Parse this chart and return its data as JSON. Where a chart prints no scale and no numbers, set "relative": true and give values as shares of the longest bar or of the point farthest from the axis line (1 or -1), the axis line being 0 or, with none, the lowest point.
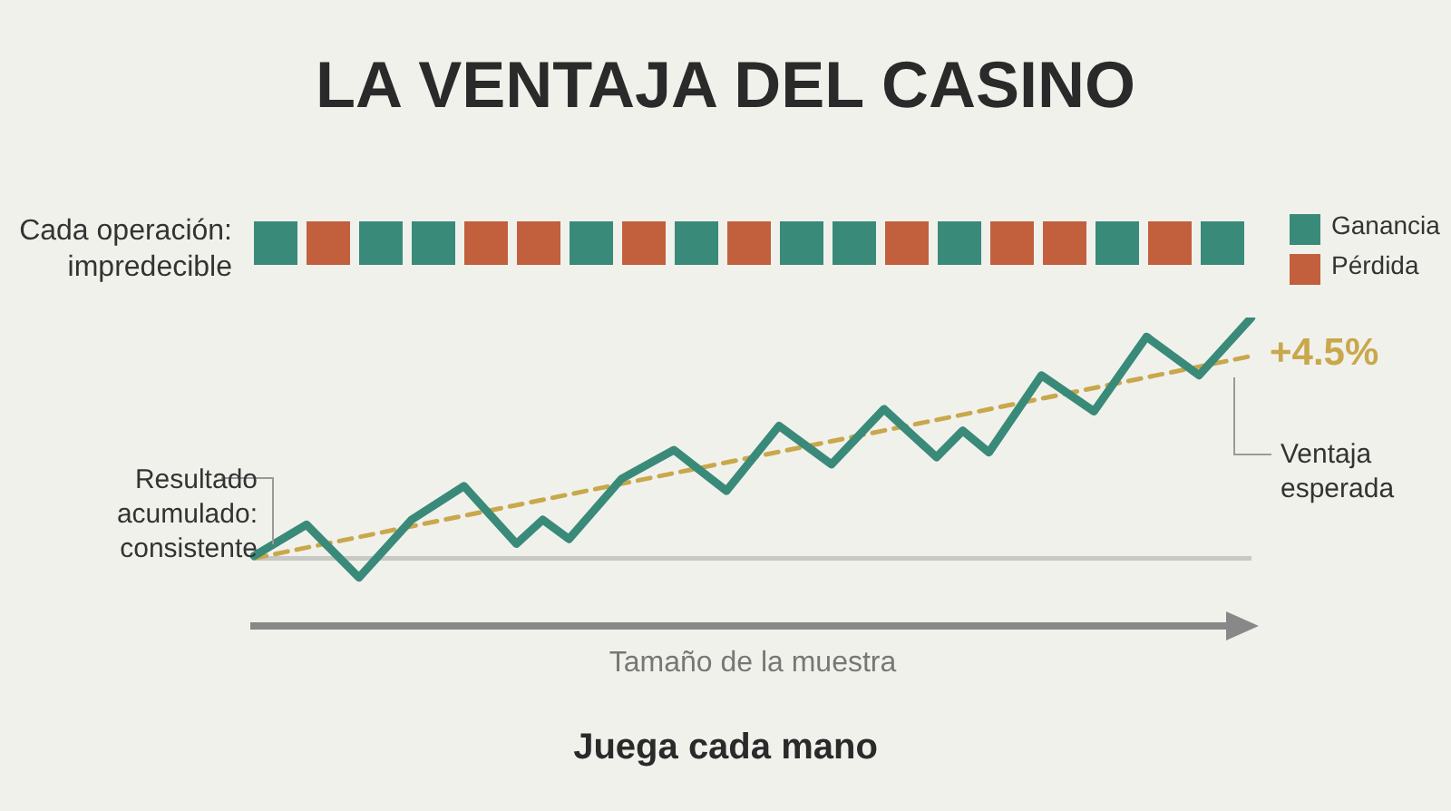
{
  "chart_data": {
    "type": "line",
    "title": "LA VENTAJA DEL CASINO",
    "xlabel": "Tamaño de la muestra",
    "relative": true,
    "categories": [
      null,
      null,
      null,
      null,
      null,
      null,
      null,
      null,
      null,
      null,
      null,
      null,
      null,
      null,
      null,
      null,
      null,
      null,
      null,
      null,
      null,
      null,
      null,
      null,
      null,
      null,
      null,
      null,
      null,
      null,
      null,
      null,
      null,
      null,
      null,
      null,
      null,
      null,
      null
    ],
    "series": [
      {
        "color": "#3a8a7a",
        "values": [
          0.01,
          null,
          0.14,
          null,
          -0.08,
          null,
          0.16,
          null,
          0.3,
          null,
          0.06,
          0.16,
          0.08,
          null,
          0.33,
          null,
          0.45,
          null,
          0.28,
          null,
          0.55,
          null,
          0.39,
          null,
          0.62,
          null,
          0.42,
          0.53,
          0.44,
          null,
          0.76,
          null,
          0.61,
          null,
          0.92,
          null,
          0.76,
          null,
          1
        ]
      },
      {
        "type": "line",
        "color": "#c9a84c",
        "line_style": "dashed",
        "values": [
          0,
          null,
          null,
          null,
          null,
          null,
          null,
          null,
          null,
          null,
          null,
          null,
          null,
          null,
          null,
          null,
          null,
          null,
          null,
          null,
          null,
          null,
          null,
          null,
          null,
          null,
          null,
          null,
          null,
          null,
          null,
          null,
          null,
          null,
          null,
          null,
          null,
          null,
          0.84
        ]
      }
    ],
    "marker": "none",
    "legend": false,
    "annotations": [
      "Cada operación: impredecible",
      "Ganancia",
      "Pérdida",
      "+4.5%",
      "Ventaja esperada",
      "Resultado acumulado: consistente",
      "Juega cada mano"
    ]
  }
}
